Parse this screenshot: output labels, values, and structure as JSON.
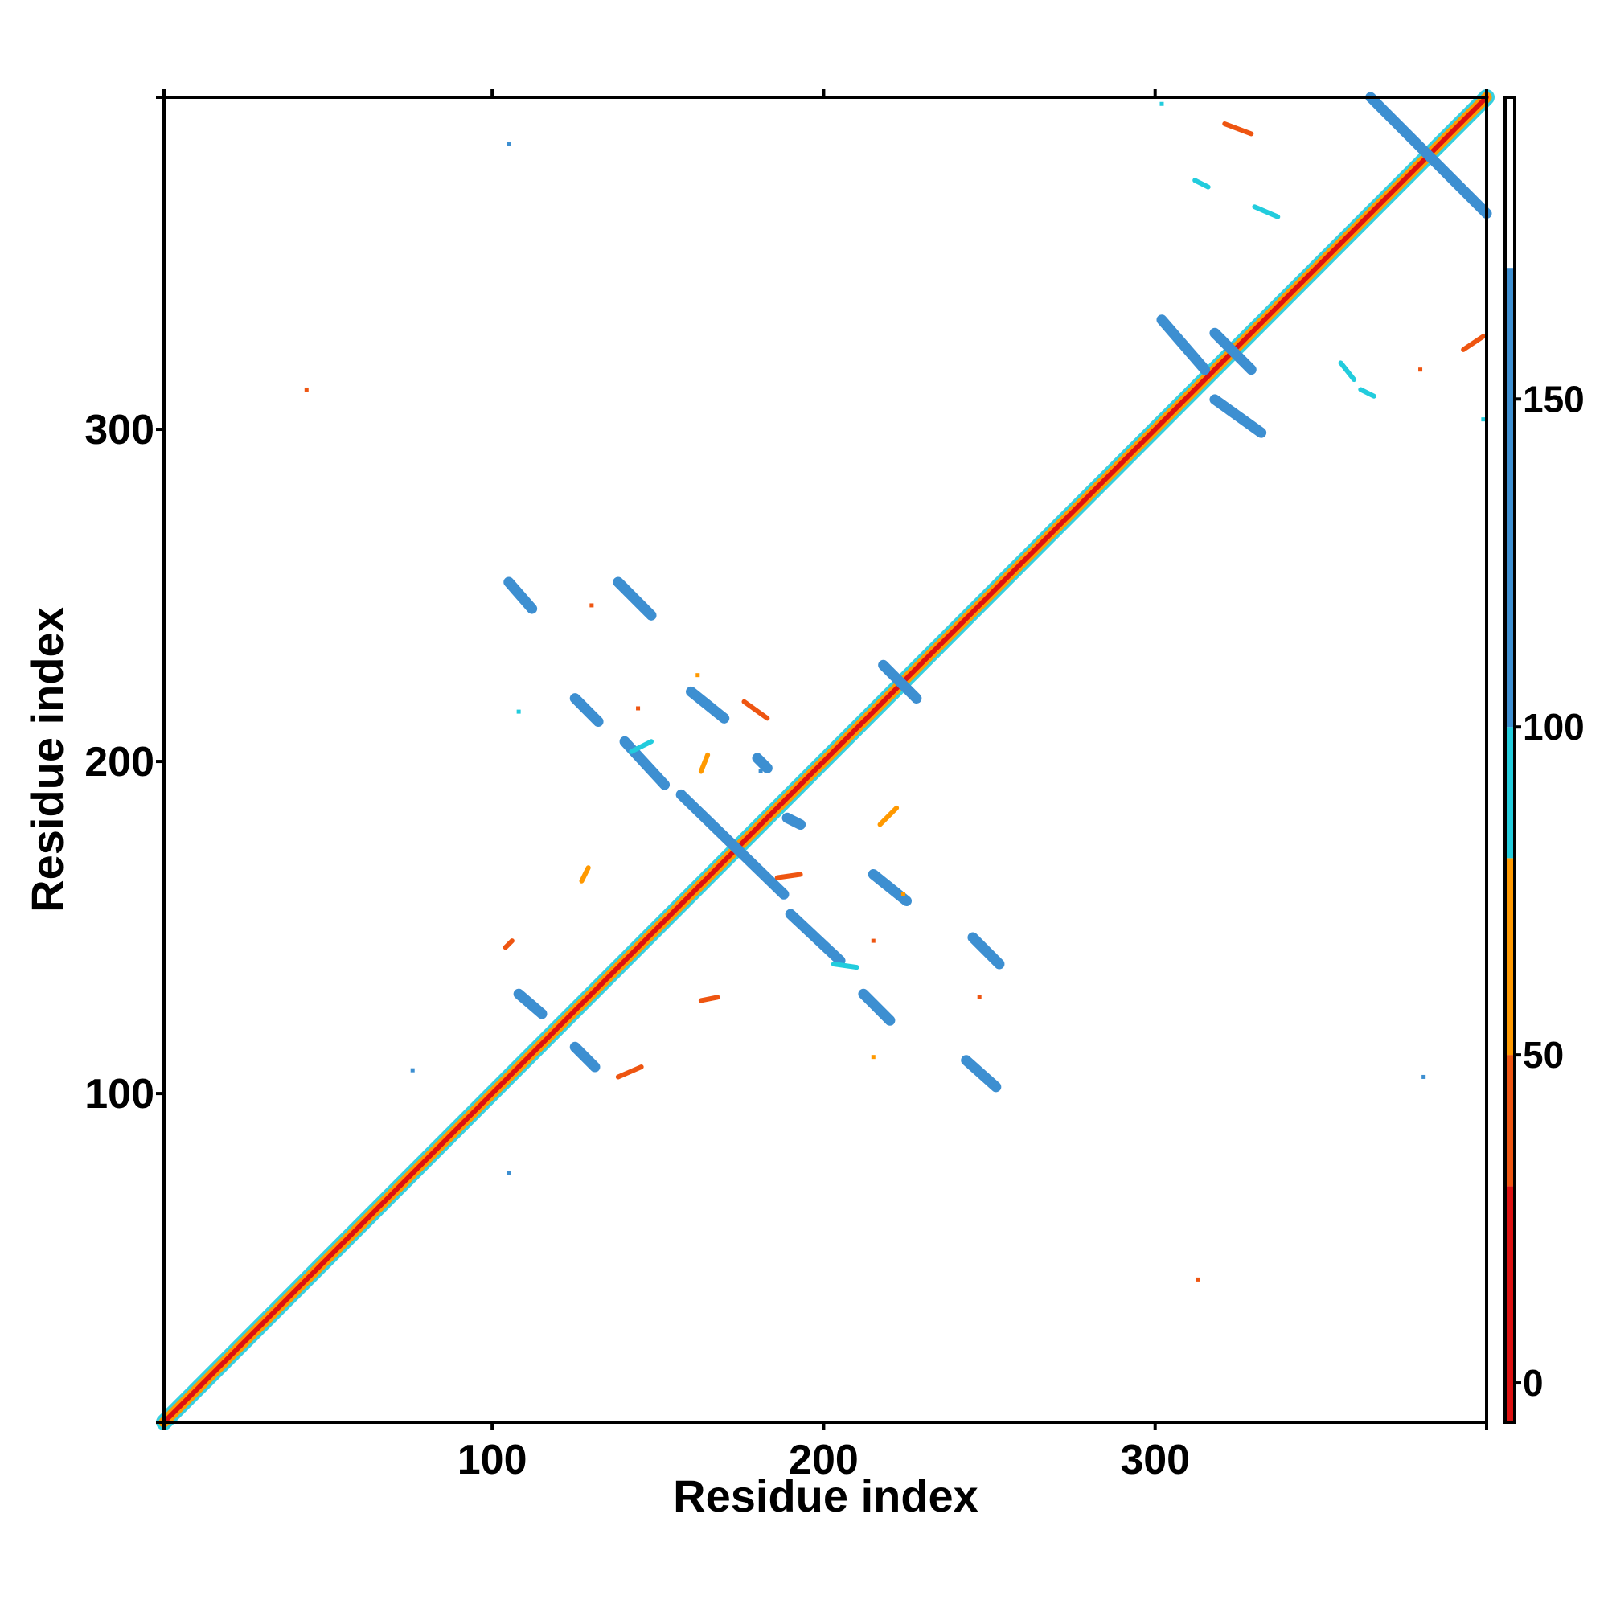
{
  "chart_data": {
    "type": "heatmap",
    "subtype": "residue contact map",
    "xlabel": "Residue index",
    "ylabel": "Residue index",
    "xlim": [
      1,
      400
    ],
    "ylim": [
      1,
      400
    ],
    "x_ticks": [
      100,
      200,
      300
    ],
    "y_ticks": [
      100,
      200,
      300
    ],
    "grid": false,
    "colorbar": {
      "position": "right",
      "range": [
        -6,
        196
      ],
      "ticks": [
        0,
        50,
        100,
        150
      ],
      "bands": [
        {
          "from": -6,
          "to": 30,
          "color": "#dd1111"
        },
        {
          "from": 30,
          "to": 50,
          "color": "#ee5511"
        },
        {
          "from": 50,
          "to": 80,
          "color": "#ff9900"
        },
        {
          "from": 80,
          "to": 100,
          "color": "#22ccdd"
        },
        {
          "from": 100,
          "to": 170,
          "color": "#3d8fd1"
        },
        {
          "from": 170,
          "to": 196,
          "color": "#ffffff"
        }
      ]
    },
    "diagonal": {
      "from": 1,
      "to": 400,
      "colors": [
        "#dd1111",
        "#ff9900",
        "#22ccdd"
      ]
    },
    "segments": [
      {
        "x": [
          105,
          112
        ],
        "y": [
          254,
          246
        ],
        "color": "#3d8fd1"
      },
      {
        "x": [
          138,
          148
        ],
        "y": [
          254,
          244
        ],
        "color": "#3d8fd1"
      },
      {
        "x": [
          125,
          132
        ],
        "y": [
          219,
          212
        ],
        "color": "#3d8fd1"
      },
      {
        "x": [
          160,
          170
        ],
        "y": [
          221,
          213
        ],
        "color": "#3d8fd1"
      },
      {
        "x": [
          140,
          152
        ],
        "y": [
          206,
          193
        ],
        "color": "#3d8fd1"
      },
      {
        "x": [
          157,
          188
        ],
        "y": [
          190,
          160
        ],
        "color": "#3d8fd1"
      },
      {
        "x": [
          190,
          205
        ],
        "y": [
          154,
          140
        ],
        "color": "#3d8fd1"
      },
      {
        "x": [
          215,
          225
        ],
        "y": [
          166,
          158
        ],
        "color": "#3d8fd1"
      },
      {
        "x": [
          245,
          253
        ],
        "y": [
          147,
          139
        ],
        "color": "#3d8fd1"
      },
      {
        "x": [
          108,
          115
        ],
        "y": [
          130,
          124
        ],
        "color": "#3d8fd1"
      },
      {
        "x": [
          125,
          131
        ],
        "y": [
          114,
          108
        ],
        "color": "#3d8fd1"
      },
      {
        "x": [
          212,
          220
        ],
        "y": [
          130,
          122
        ],
        "color": "#3d8fd1"
      },
      {
        "x": [
          243,
          252
        ],
        "y": [
          110,
          102
        ],
        "color": "#3d8fd1"
      },
      {
        "x": [
          302,
          315
        ],
        "y": [
          333,
          318
        ],
        "color": "#3d8fd1"
      },
      {
        "x": [
          318,
          332
        ],
        "y": [
          309,
          299
        ],
        "color": "#3d8fd1"
      },
      {
        "x": [
          365,
          400
        ],
        "y": [
          400,
          365
        ],
        "color": "#3d8fd1"
      },
      {
        "x": [
          318,
          329
        ],
        "y": [
          329,
          318
        ],
        "color": "#3d8fd1"
      },
      {
        "x": [
          218,
          228
        ],
        "y": [
          229,
          219
        ],
        "color": "#3d8fd1"
      },
      {
        "x": [
          321,
          329
        ],
        "y": [
          392,
          389
        ],
        "color": "#ee5511"
      },
      {
        "x": [
          393,
          399
        ],
        "y": [
          324,
          328
        ],
        "color": "#ee5511"
      },
      {
        "x": [
          330,
          337
        ],
        "y": [
          367,
          364
        ],
        "color": "#22ccdd"
      },
      {
        "x": [
          312,
          316
        ],
        "y": [
          375,
          373
        ],
        "color": "#22ccdd"
      },
      {
        "x": [
          356,
          360
        ],
        "y": [
          320,
          315
        ],
        "color": "#22ccdd"
      },
      {
        "x": [
          362,
          366
        ],
        "y": [
          312,
          310
        ],
        "color": "#22ccdd"
      },
      {
        "x": [
          176,
          183
        ],
        "y": [
          218,
          213
        ],
        "color": "#ee5511"
      },
      {
        "x": [
          217,
          222
        ],
        "y": [
          181,
          186
        ],
        "color": "#ff9900"
      },
      {
        "x": [
          163,
          165
        ],
        "y": [
          197,
          202
        ],
        "color": "#ff9900"
      },
      {
        "x": [
          142,
          148
        ],
        "y": [
          203,
          206
        ],
        "color": "#22ccdd"
      },
      {
        "x": [
          104,
          106
        ],
        "y": [
          144,
          146
        ],
        "color": "#ee5511"
      },
      {
        "x": [
          163,
          168
        ],
        "y": [
          128,
          129
        ],
        "color": "#ee5511"
      },
      {
        "x": [
          127,
          129
        ],
        "y": [
          164,
          168
        ],
        "color": "#ff9900"
      },
      {
        "x": [
          186,
          193
        ],
        "y": [
          165,
          166
        ],
        "color": "#ee5511"
      },
      {
        "x": [
          138,
          145
        ],
        "y": [
          105,
          108
        ],
        "color": "#ee5511"
      },
      {
        "x": [
          180,
          183
        ],
        "y": [
          201,
          198
        ],
        "color": "#3d8fd1"
      },
      {
        "x": [
          203,
          210
        ],
        "y": [
          139,
          138
        ],
        "color": "#22ccdd"
      },
      {
        "x": [
          189,
          193
        ],
        "y": [
          183,
          181
        ],
        "color": "#3d8fd1"
      }
    ],
    "points": [
      {
        "x": 105,
        "y": 386,
        "color": "#3d8fd1"
      },
      {
        "x": 44,
        "y": 312,
        "color": "#ee5511"
      },
      {
        "x": 105,
        "y": 76,
        "color": "#3d8fd1"
      },
      {
        "x": 76,
        "y": 107,
        "color": "#3d8fd1"
      },
      {
        "x": 381,
        "y": 105,
        "color": "#3d8fd1"
      },
      {
        "x": 313,
        "y": 44,
        "color": "#ee5511"
      },
      {
        "x": 108,
        "y": 215,
        "color": "#22ccdd"
      },
      {
        "x": 130,
        "y": 247,
        "color": "#ee5511"
      },
      {
        "x": 144,
        "y": 216,
        "color": "#ee5511"
      },
      {
        "x": 215,
        "y": 111,
        "color": "#ff9900"
      },
      {
        "x": 215,
        "y": 146,
        "color": "#ee5511"
      },
      {
        "x": 247,
        "y": 129,
        "color": "#ee5511"
      },
      {
        "x": 224,
        "y": 160,
        "color": "#ff9900"
      },
      {
        "x": 380,
        "y": 318,
        "color": "#ee5511"
      },
      {
        "x": 302,
        "y": 398,
        "color": "#22ccdd"
      },
      {
        "x": 399,
        "y": 303,
        "color": "#22ccdd"
      },
      {
        "x": 162,
        "y": 226,
        "color": "#ff9900"
      },
      {
        "x": 181,
        "y": 197,
        "color": "#3d8fd1"
      }
    ]
  }
}
